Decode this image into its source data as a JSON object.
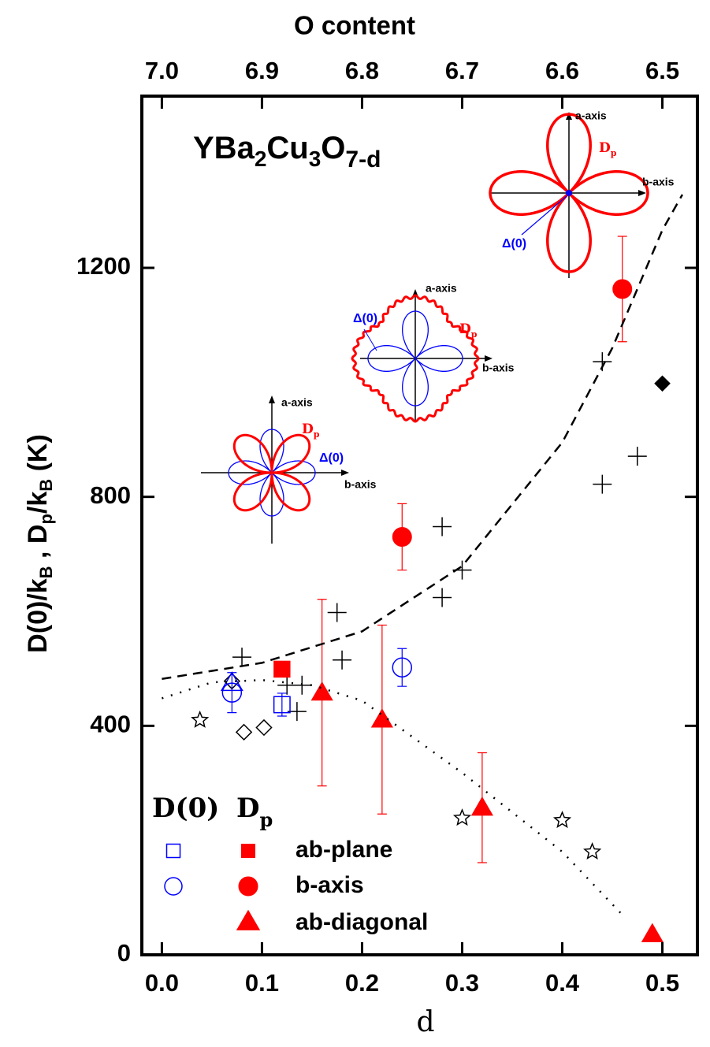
{
  "chart_data": {
    "type": "scatter",
    "formula": [
      "YBa",
      "2",
      "Cu",
      "3",
      "O",
      "7-d"
    ],
    "ylabel": [
      "D(0)/k",
      "B",
      " , D",
      "p",
      "/k",
      "B",
      "  (K)"
    ],
    "xlabel": "d",
    "x2label": "O content",
    "xlim": [
      -0.02,
      0.535
    ],
    "ylim": [
      0,
      1500
    ],
    "x2lim": [
      7.02,
      6.465
    ],
    "xticks": [
      {
        "value": 0,
        "label": "0.0"
      },
      0.1,
      0.2,
      0.3,
      0.4,
      0.5
    ],
    "yticks": [
      0,
      400,
      800,
      1200
    ],
    "x2ticks": [
      {
        "value": 7,
        "label": "7.0"
      },
      6.9,
      6.8,
      6.7,
      6.6,
      6.5
    ],
    "series": [
      {
        "marker": "plus",
        "color": "#000000",
        "x": [
          0.08,
          0.125,
          0.14,
          0.135,
          0.18,
          0.175,
          0.28,
          0.3,
          0.28,
          0.44,
          0.44,
          0.475
        ],
        "values": [
          520,
          471,
          471,
          425,
          515,
          598,
          624,
          672,
          748,
          1036,
          822,
          871
        ]
      },
      {
        "marker": "diamond-open",
        "color": "#000000",
        "x": [
          0.07,
          0.082,
          0.102
        ],
        "values": [
          478,
          389,
          397
        ]
      },
      {
        "marker": "diamond",
        "color": "#000000",
        "x": [
          0.5
        ],
        "values": [
          998
        ]
      },
      {
        "marker": "star-open",
        "color": "#000000",
        "x": [
          0.038,
          0.3,
          0.4,
          0.43
        ],
        "values": [
          410,
          239,
          235,
          180
        ]
      },
      {
        "marker": "square-open",
        "color": "#0000ff",
        "x": [
          0.12
        ],
        "values": [
          437
        ],
        "errors": [
          20
        ]
      },
      {
        "marker": "circle-open",
        "color": "#0000ff",
        "x": [
          0.07,
          0.24
        ],
        "values": [
          458,
          502
        ],
        "errors": [
          35,
          33
        ]
      },
      {
        "marker": "triangle-open",
        "color": "#0000ff",
        "x": [
          0.07
        ],
        "values": [
          475
        ]
      },
      {
        "marker": "square",
        "color": "#ff0000",
        "x": [
          0.12
        ],
        "values": [
          499
        ]
      },
      {
        "marker": "circle",
        "color": "#ff0000",
        "x": [
          0.24,
          0.46
        ],
        "values": [
          730,
          1163
        ],
        "errors": [
          58,
          92
        ]
      },
      {
        "marker": "triangle",
        "color": "#ff0000",
        "x": [
          0.16,
          0.22,
          0.32,
          0.49
        ],
        "values": [
          458,
          411,
          257,
          36
        ],
        "errors": [
          163,
          165,
          96,
          null
        ]
      },
      {
        "style": "dashed",
        "color": "#000000",
        "x": [
          0,
          0.1,
          0.2,
          0.3,
          0.4,
          0.45,
          0.5,
          0.52
        ],
        "values": [
          482,
          510,
          565,
          679,
          895,
          1060,
          1266,
          1328
        ]
      },
      {
        "style": "dotted",
        "color": "#000000",
        "x": [
          0,
          0.05,
          0.1,
          0.15,
          0.2,
          0.3,
          0.4,
          0.46
        ],
        "values": [
          448,
          476,
          480,
          471,
          444,
          318,
          180,
          70
        ]
      }
    ],
    "legend": {
      "headers": [
        {
          "text": "D(0)"
        },
        {
          "text": "D",
          "sub": "p"
        }
      ],
      "rows": [
        "ab-plane",
        "b-axis",
        "ab-diagonal"
      ]
    },
    "insets": [
      {
        "a": "a-axis",
        "b": "b-axis",
        "gap": "Δ(0)",
        "dp": {
          "text": "D",
          "sub": "p"
        }
      },
      {
        "a": "a-axis",
        "b": "b-axis",
        "gap": "Δ(0)",
        "dp": {
          "text": "D",
          "sub": "p"
        }
      },
      {
        "a": "a-axis",
        "b": "b-axis",
        "gap": "Δ(0)",
        "dp": {
          "text": "D",
          "sub": "p"
        }
      }
    ]
  }
}
